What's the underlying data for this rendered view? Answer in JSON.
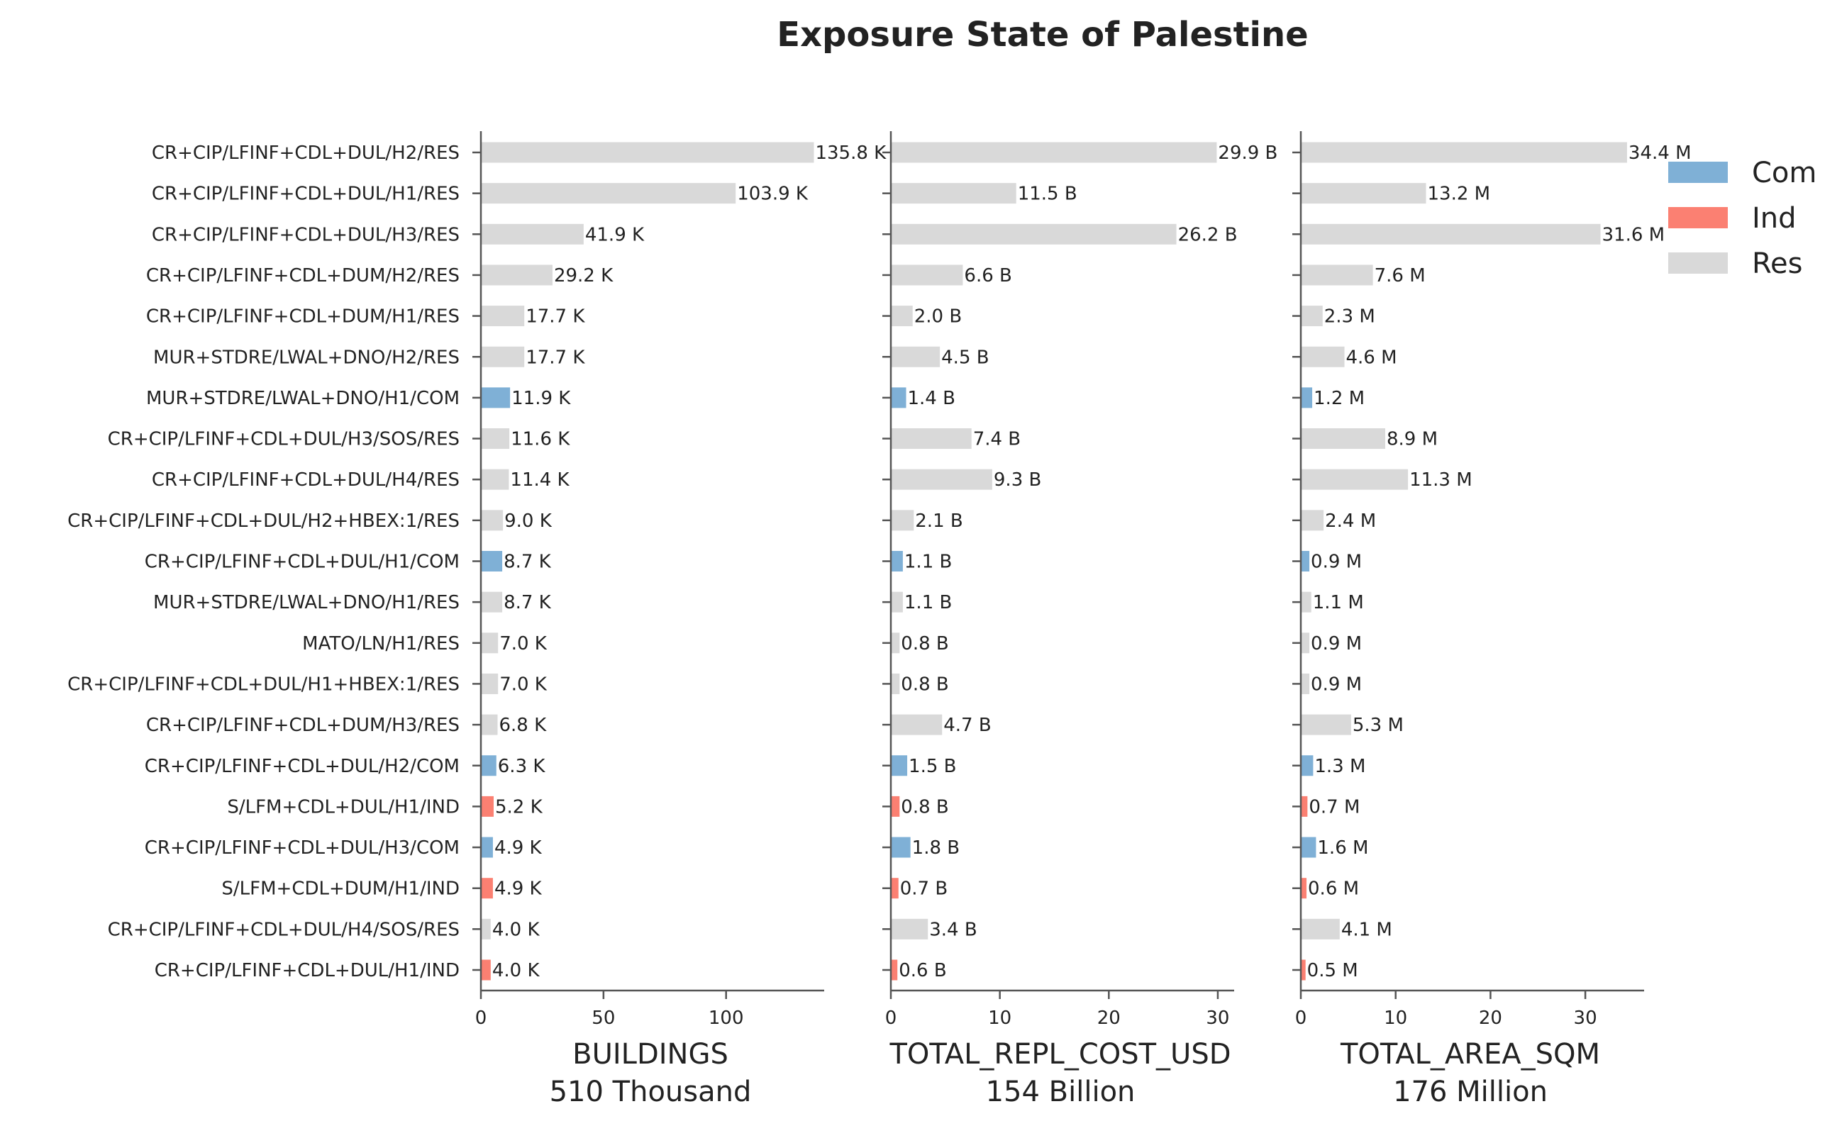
{
  "chart_data": {
    "type": "bar",
    "orientation": "horizontal",
    "title": "Exposure State of Palestine",
    "colors": {
      "Com": "#7FB0D6",
      "Ind": "#FB8072",
      "Res": "#D9D9D9"
    },
    "legend": {
      "placement": "top-right",
      "entries": [
        "Com",
        "Ind",
        "Res"
      ]
    },
    "grid": false,
    "categories": [
      "CR+CIP/LFINF+CDL+DUL/H2/RES",
      "CR+CIP/LFINF+CDL+DUL/H1/RES",
      "CR+CIP/LFINF+CDL+DUL/H3/RES",
      "CR+CIP/LFINF+CDL+DUM/H2/RES",
      "CR+CIP/LFINF+CDL+DUM/H1/RES",
      "MUR+STDRE/LWAL+DNO/H2/RES",
      "MUR+STDRE/LWAL+DNO/H1/COM",
      "CR+CIP/LFINF+CDL+DUL/H3/SOS/RES",
      "CR+CIP/LFINF+CDL+DUL/H4/RES",
      "CR+CIP/LFINF+CDL+DUL/H2+HBEX:1/RES",
      "CR+CIP/LFINF+CDL+DUL/H1/COM",
      "MUR+STDRE/LWAL+DNO/H1/RES",
      "MATO/LN/H1/RES",
      "CR+CIP/LFINF+CDL+DUL/H1+HBEX:1/RES",
      "CR+CIP/LFINF+CDL+DUM/H3/RES",
      "CR+CIP/LFINF+CDL+DUL/H2/COM",
      "S/LFM+CDL+DUL/H1/IND",
      "CR+CIP/LFINF+CDL+DUL/H3/COM",
      "S/LFM+CDL+DUM/H1/IND",
      "CR+CIP/LFINF+CDL+DUL/H4/SOS/RES",
      "CR+CIP/LFINF+CDL+DUL/H1/IND"
    ],
    "occupancy": [
      "Res",
      "Res",
      "Res",
      "Res",
      "Res",
      "Res",
      "Com",
      "Res",
      "Res",
      "Res",
      "Com",
      "Res",
      "Res",
      "Res",
      "Res",
      "Com",
      "Ind",
      "Com",
      "Ind",
      "Res",
      "Ind"
    ],
    "panels": [
      {
        "xlabel": "BUILDINGS",
        "total": "510 Thousand",
        "xlim": [
          0,
          140
        ],
        "ticks": [
          0,
          50,
          100
        ],
        "tick_labels": [
          "0",
          "50",
          "100"
        ],
        "values": [
          135.8,
          103.9,
          41.9,
          29.2,
          17.7,
          17.7,
          11.9,
          11.6,
          11.4,
          9.0,
          8.7,
          8.7,
          7.0,
          7.0,
          6.8,
          6.3,
          5.2,
          4.9,
          4.9,
          4.0,
          4.0
        ],
        "labels": [
          "135.8 K",
          "103.9 K",
          "41.9 K",
          "29.2 K",
          "17.7 K",
          "17.7 K",
          "11.9 K",
          "11.6 K",
          "11.4 K",
          "9.0 K",
          "8.7 K",
          "8.7 K",
          "7.0 K",
          "7.0 K",
          "6.8 K",
          "6.3 K",
          "5.2 K",
          "4.9 K",
          "4.9 K",
          "4.0 K",
          "4.0 K"
        ]
      },
      {
        "xlabel": "TOTAL_REPL_COST_USD",
        "total": "154 Billion",
        "xlim": [
          0,
          31.5
        ],
        "ticks": [
          0,
          10,
          20,
          30
        ],
        "tick_labels": [
          "0",
          "10",
          "20",
          "30"
        ],
        "values": [
          29.9,
          11.5,
          26.2,
          6.6,
          2.0,
          4.5,
          1.4,
          7.4,
          9.3,
          2.1,
          1.1,
          1.1,
          0.8,
          0.8,
          4.7,
          1.5,
          0.8,
          1.8,
          0.7,
          3.4,
          0.6
        ],
        "labels": [
          "29.9 B",
          "11.5 B",
          "26.2 B",
          "6.6 B",
          "2.0 B",
          "4.5 B",
          "1.4 B",
          "7.4 B",
          "9.3 B",
          "2.1 B",
          "1.1 B",
          "1.1 B",
          "0.8 B",
          "0.8 B",
          "4.7 B",
          "1.5 B",
          "0.8 B",
          "1.8 B",
          "0.7 B",
          "3.4 B",
          "0.6 B"
        ]
      },
      {
        "xlabel": "TOTAL_AREA_SQM",
        "total": "176 Million",
        "xlim": [
          0,
          36.2
        ],
        "ticks": [
          0,
          10,
          20,
          30
        ],
        "tick_labels": [
          "0",
          "10",
          "20",
          "30"
        ],
        "values": [
          34.4,
          13.2,
          31.6,
          7.6,
          2.3,
          4.6,
          1.2,
          8.9,
          11.3,
          2.4,
          0.9,
          1.1,
          0.9,
          0.9,
          5.3,
          1.3,
          0.7,
          1.6,
          0.6,
          4.1,
          0.5
        ],
        "labels": [
          "34.4 M",
          "13.2 M",
          "31.6 M",
          "7.6 M",
          "2.3 M",
          "4.6 M",
          "1.2 M",
          "8.9 M",
          "11.3 M",
          "2.4 M",
          "0.9 M",
          "1.1 M",
          "0.9 M",
          "0.9 M",
          "5.3 M",
          "1.3 M",
          "0.7 M",
          "1.6 M",
          "0.6 M",
          "4.1 M",
          "0.5 M"
        ]
      }
    ]
  }
}
